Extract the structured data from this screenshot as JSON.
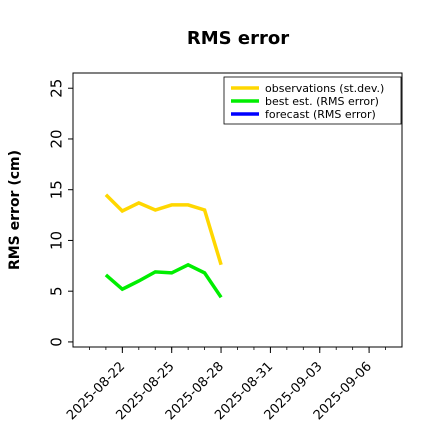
{
  "chart_data": {
    "type": "line",
    "title": "RMS error",
    "ylabel": "RMS error (cm)",
    "xlabel": "",
    "ylim": [
      -0.5,
      26.5
    ],
    "yticks": [
      0,
      5,
      10,
      15,
      20,
      25
    ],
    "xlim": [
      "2025-08-19",
      "2025-09-08"
    ],
    "xticks": [
      {
        "label": "2025-08-22",
        "date": "2025-08-22",
        "color": "#000000"
      },
      {
        "label": "2025-08-25",
        "date": "2025-08-25",
        "color": "#000000"
      },
      {
        "label": "2025-08-28",
        "date": "2025-08-28",
        "color": "#228B22"
      },
      {
        "label": "2025-08-31",
        "date": "2025-08-31",
        "color": "#000000"
      },
      {
        "label": "2025-09-03",
        "date": "2025-09-03",
        "color": "#000000"
      },
      {
        "label": "2025-09-06",
        "date": "2025-09-06",
        "color": "#000000"
      }
    ],
    "grid": false,
    "legend_position": "top-right",
    "series": [
      {
        "name": "observations (st.dev.)",
        "color": "#FFD700",
        "points": [
          {
            "x": "2025-08-21",
            "y": 14.5
          },
          {
            "x": "2025-08-22",
            "y": 12.9
          },
          {
            "x": "2025-08-23",
            "y": 13.7
          },
          {
            "x": "2025-08-24",
            "y": 13.0
          },
          {
            "x": "2025-08-25",
            "y": 13.5
          },
          {
            "x": "2025-08-26",
            "y": 13.5
          },
          {
            "x": "2025-08-27",
            "y": 13.0
          },
          {
            "x": "2025-08-28",
            "y": 7.6
          }
        ]
      },
      {
        "name": "best est. (RMS error)",
        "color": "#00EE00",
        "points": [
          {
            "x": "2025-08-21",
            "y": 6.6
          },
          {
            "x": "2025-08-22",
            "y": 5.2
          },
          {
            "x": "2025-08-23",
            "y": 6.0
          },
          {
            "x": "2025-08-24",
            "y": 6.9
          },
          {
            "x": "2025-08-25",
            "y": 6.8
          },
          {
            "x": "2025-08-26",
            "y": 7.6
          },
          {
            "x": "2025-08-27",
            "y": 6.8
          },
          {
            "x": "2025-08-28",
            "y": 4.4
          }
        ]
      },
      {
        "name": "forecast (RMS error)",
        "color": "#0000FF",
        "points": []
      }
    ]
  }
}
